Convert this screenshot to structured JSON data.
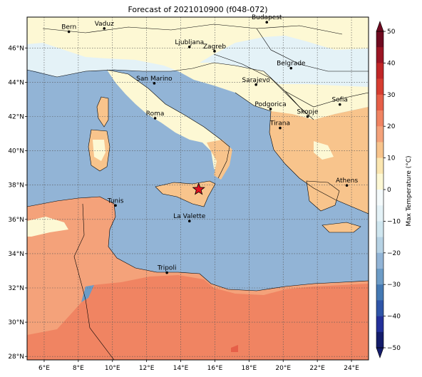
{
  "title": "Forecast of 2021010900 (f048-072)",
  "colorbar": {
    "label": "Max Temperature (°C)",
    "ticks": [
      "50",
      "40",
      "30",
      "20",
      "10",
      "0",
      "−10",
      "−20",
      "−30",
      "−40",
      "−50"
    ],
    "min": -50,
    "max": 50,
    "step": 5,
    "extend": "both",
    "colors": [
      "#141c6b",
      "#23309a",
      "#2f55a8",
      "#4479b3",
      "#6d9cc6",
      "#92b4d6",
      "#b6d2e4",
      "#cfe6ef",
      "#e4f2f7",
      "#f4fafb",
      "#fdf8d4",
      "#fbe6b0",
      "#f8c48c",
      "#f4a27a",
      "#f08462",
      "#e65f48",
      "#d63d31",
      "#c02627",
      "#9b1524",
      "#6f0a20"
    ]
  },
  "map": {
    "lon_range": [
      5,
      25
    ],
    "lat_range": [
      27.8,
      47.8
    ],
    "lon_ticks": [
      "6°E",
      "8°E",
      "10°E",
      "12°E",
      "14°E",
      "16°E",
      "18°E",
      "20°E",
      "22°E",
      "24°E"
    ],
    "lat_ticks": [
      "28°N",
      "30°N",
      "32°N",
      "34°N",
      "36°N",
      "38°N",
      "40°N",
      "42°N",
      "44°N",
      "46°N"
    ],
    "colors": {
      "sea": "#92b4d6",
      "coast_cold": "#e4f2f7",
      "land_mild": "#fdf8d4",
      "land_warm": "#f8c48c",
      "land_hot": "#f4a27a",
      "desert_hot": "#f08462",
      "desert_hotter": "#e65f48",
      "border": "#000000"
    },
    "cities": [
      {
        "name": "Bern",
        "lon": 7.45,
        "lat": 46.95
      },
      {
        "name": "Vaduz",
        "lon": 9.52,
        "lat": 47.14
      },
      {
        "name": "Budapest",
        "lon": 19.04,
        "lat": 47.5
      },
      {
        "name": "Ljubljana",
        "lon": 14.51,
        "lat": 46.06
      },
      {
        "name": "Zagreb",
        "lon": 15.98,
        "lat": 45.81
      },
      {
        "name": "Belgrade",
        "lon": 20.46,
        "lat": 44.82
      },
      {
        "name": "San Marino",
        "lon": 12.45,
        "lat": 43.94
      },
      {
        "name": "Sarajevo",
        "lon": 18.41,
        "lat": 43.86
      },
      {
        "name": "Sofia",
        "lon": 23.32,
        "lat": 42.7
      },
      {
        "name": "Podgorica",
        "lon": 19.26,
        "lat": 42.44
      },
      {
        "name": "Skopje",
        "lon": 21.43,
        "lat": 42.0
      },
      {
        "name": "Roma",
        "lon": 12.5,
        "lat": 41.9
      },
      {
        "name": "Tirana",
        "lon": 19.82,
        "lat": 41.33
      },
      {
        "name": "Athens",
        "lon": 23.73,
        "lat": 37.98
      },
      {
        "name": "Tunis",
        "lon": 10.18,
        "lat": 36.81
      },
      {
        "name": "La Valette",
        "lon": 14.51,
        "lat": 35.9
      },
      {
        "name": "Tripoli",
        "lon": 13.19,
        "lat": 32.89
      }
    ],
    "marker": {
      "type": "star",
      "lon": 15.05,
      "lat": 37.75,
      "color": "#e01020"
    }
  }
}
